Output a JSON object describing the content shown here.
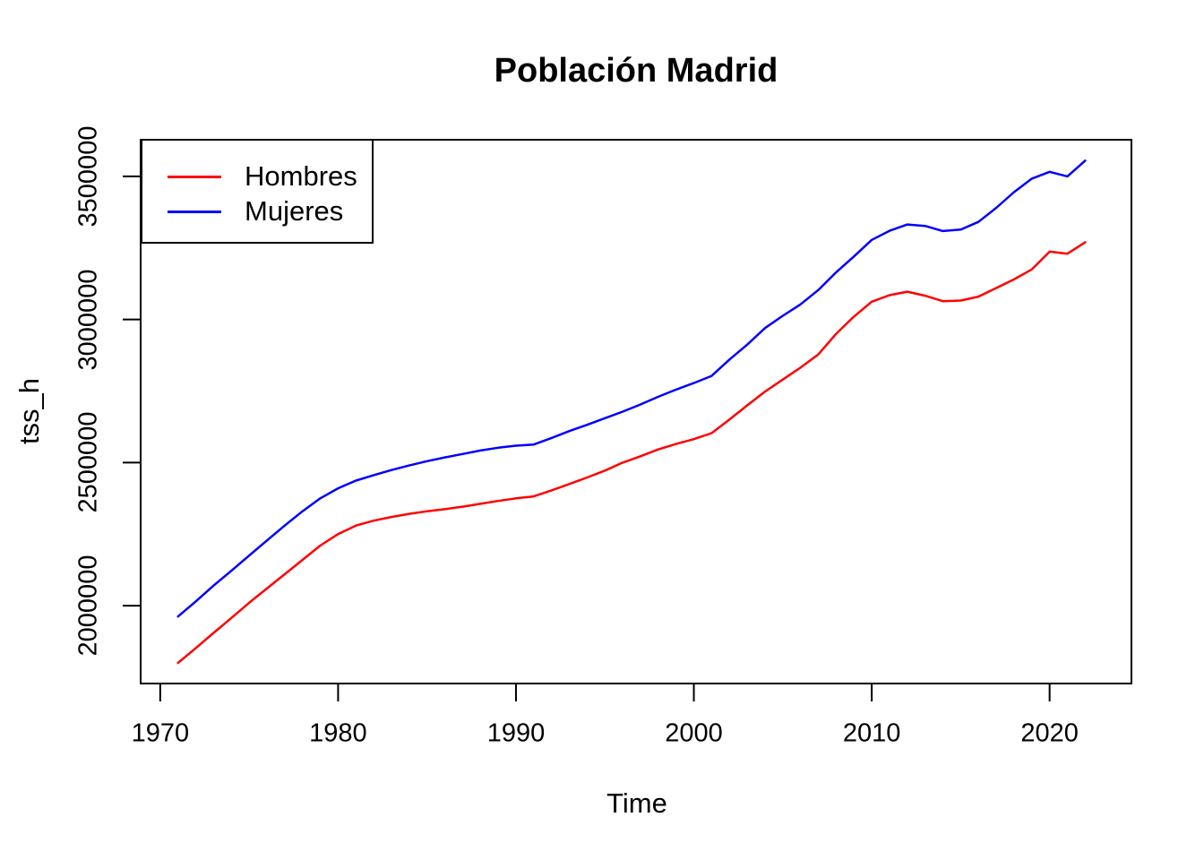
{
  "title": "Población Madrid",
  "colors": {
    "background": "#FFFFFF",
    "axis": "#000000",
    "text": "#000000",
    "hombres": "#FF0000",
    "mujeres": "#0000FF"
  },
  "legend": {
    "entries": [
      {
        "label": "Hombres",
        "color": "#FF0000"
      },
      {
        "label": "Mujeres",
        "color": "#0000FF"
      }
    ],
    "position": "top-left"
  },
  "chart_data": {
    "type": "line",
    "title": "Población Madrid",
    "xlabel": "Time",
    "ylabel": "tss_h",
    "xlim": [
      1968.9,
      2024.6
    ],
    "ylim": [
      1728000,
      3628000
    ],
    "grid": false,
    "legend_position": "top-left",
    "x_ticks": [
      1970,
      1980,
      1990,
      2000,
      2010,
      2020
    ],
    "x_tick_labels": [
      "1970",
      "1980",
      "1990",
      "2000",
      "2010",
      "2020"
    ],
    "y_ticks": [
      2000000,
      2500000,
      3000000,
      3500000
    ],
    "y_tick_labels": [
      "2000000",
      "2500000",
      "3000000",
      "3500000"
    ],
    "x": [
      1971,
      1972,
      1973,
      1974,
      1975,
      1976,
      1977,
      1978,
      1979,
      1980,
      1981,
      1982,
      1983,
      1984,
      1985,
      1986,
      1987,
      1988,
      1989,
      1990,
      1991,
      1992,
      1993,
      1994,
      1995,
      1996,
      1997,
      1998,
      1999,
      2000,
      2001,
      2002,
      2003,
      2004,
      2005,
      2006,
      2007,
      2008,
      2009,
      2010,
      2011,
      2012,
      2013,
      2014,
      2015,
      2016,
      2017,
      2018,
      2019,
      2020,
      2021,
      2022
    ],
    "series": [
      {
        "name": "Hombres",
        "color": "#FF0000",
        "values": [
          1800000,
          1852000,
          1905000,
          1957000,
          2010000,
          2060000,
          2110000,
          2160000,
          2210000,
          2250000,
          2280000,
          2297000,
          2310000,
          2321000,
          2330000,
          2337000,
          2346000,
          2356000,
          2366000,
          2375000,
          2382000,
          2403000,
          2425000,
          2448000,
          2472000,
          2500000,
          2522000,
          2546000,
          2565000,
          2582000,
          2603000,
          2650000,
          2700000,
          2748000,
          2790000,
          2832000,
          2878000,
          2950000,
          3010000,
          3062000,
          3085000,
          3097000,
          3083000,
          3064000,
          3066000,
          3080000,
          3110000,
          3140000,
          3175000,
          3237000,
          3230000,
          3270000
        ]
      },
      {
        "name": "Mujeres",
        "color": "#0000FF",
        "values": [
          1962000,
          2015000,
          2070000,
          2122000,
          2175000,
          2228000,
          2280000,
          2330000,
          2375000,
          2410000,
          2437000,
          2456000,
          2474000,
          2490000,
          2505000,
          2518000,
          2530000,
          2542000,
          2552000,
          2559000,
          2563000,
          2586000,
          2610000,
          2632000,
          2655000,
          2678000,
          2703000,
          2730000,
          2755000,
          2778000,
          2803000,
          2860000,
          2912000,
          2970000,
          3013000,
          3053000,
          3103000,
          3165000,
          3220000,
          3278000,
          3310000,
          3332000,
          3327000,
          3309000,
          3314000,
          3341000,
          3390000,
          3445000,
          3492000,
          3516000,
          3500000,
          3555000
        ]
      }
    ]
  }
}
